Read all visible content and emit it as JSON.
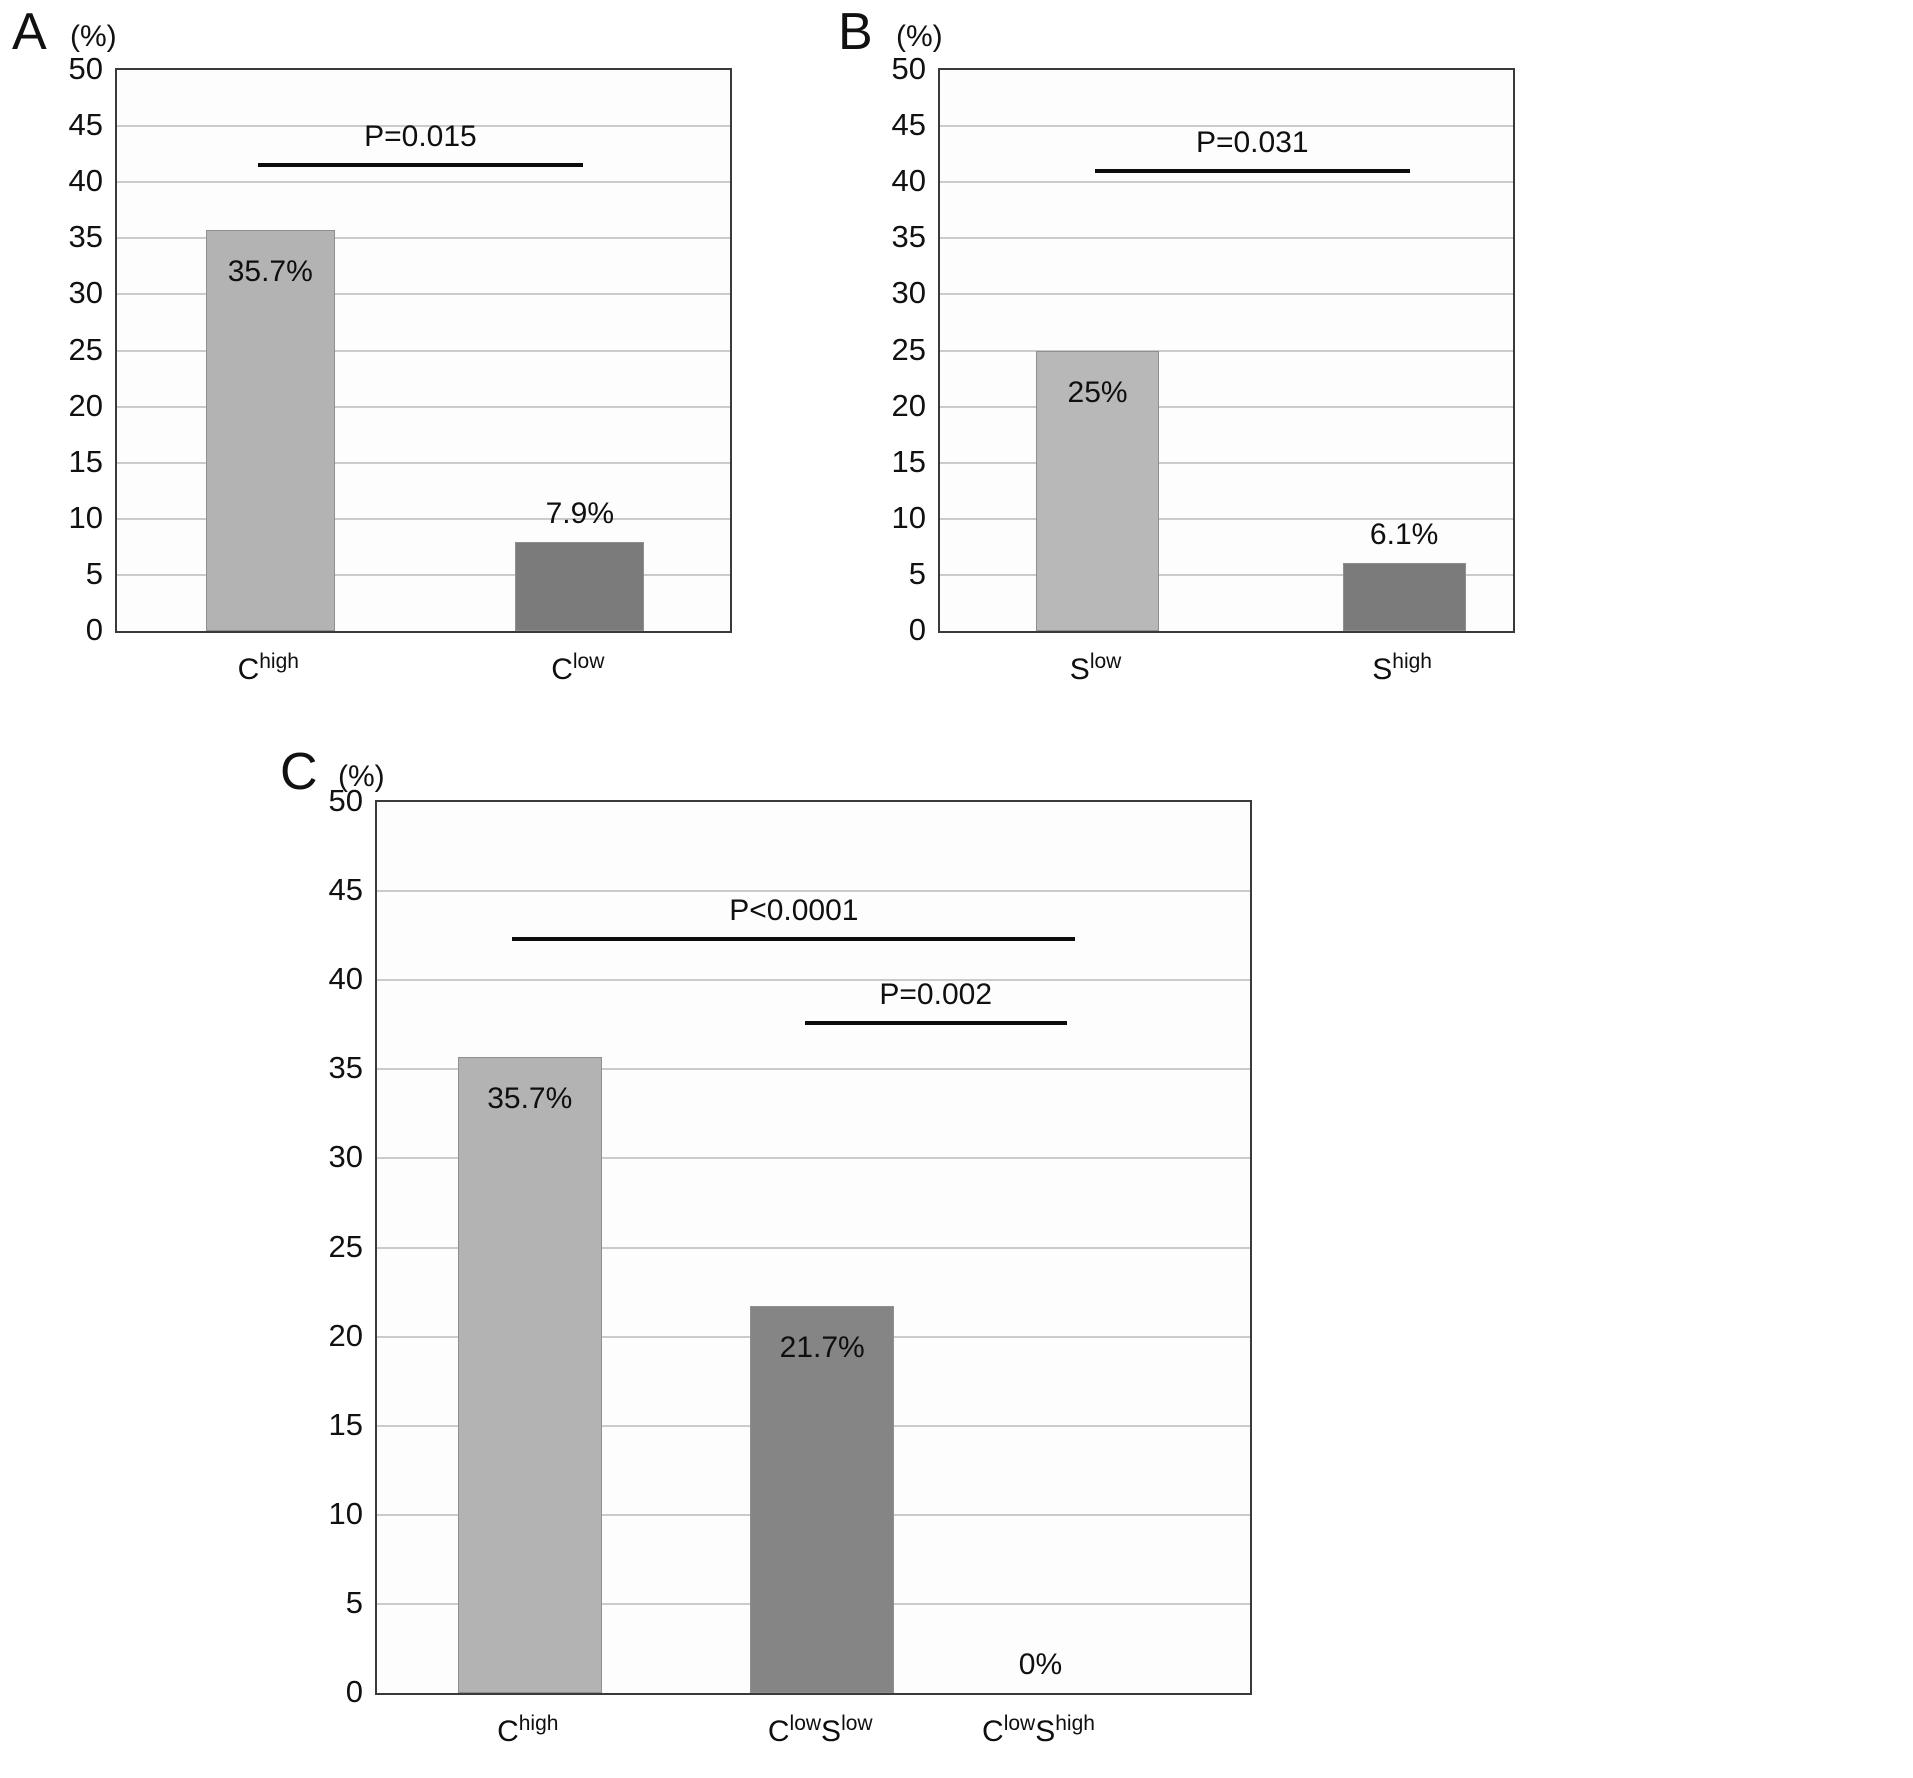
{
  "chart_data": [
    {
      "panel": "A",
      "type": "bar",
      "title": "",
      "ylabel": "(%)",
      "xlabel": "",
      "ylim": [
        0,
        50
      ],
      "yticks": [
        0,
        5,
        10,
        15,
        20,
        25,
        30,
        35,
        40,
        45,
        50
      ],
      "grid": true,
      "legend": false,
      "categories": [
        "C^high",
        "C^low"
      ],
      "bars": [
        {
          "key": "c-high",
          "category": "C^high",
          "segments": [
            {
              "text": "C",
              "sup": "high"
            }
          ],
          "value": 35.7,
          "label": "35.7%",
          "color": "#b3b3b3",
          "label_position": "inside"
        },
        {
          "key": "c-low",
          "category": "C^low",
          "segments": [
            {
              "text": "C",
              "sup": "low"
            }
          ],
          "value": 7.9,
          "label": "7.9%",
          "color": "#7b7b7b",
          "label_position": "above"
        }
      ],
      "significance": [
        {
          "label": "P=0.015",
          "y": 41.5,
          "x1": 0.23,
          "x2": 0.76
        }
      ],
      "layout": {
        "centers": [
          0.25,
          0.755
        ],
        "bar_width_frac": 0.21
      }
    },
    {
      "panel": "B",
      "type": "bar",
      "title": "",
      "ylabel": "(%)",
      "xlabel": "",
      "ylim": [
        0,
        50
      ],
      "yticks": [
        0,
        5,
        10,
        15,
        20,
        25,
        30,
        35,
        40,
        45,
        50
      ],
      "grid": true,
      "legend": false,
      "categories": [
        "S^low",
        "S^high"
      ],
      "bars": [
        {
          "key": "s-low",
          "category": "S^low",
          "segments": [
            {
              "text": "S",
              "sup": "low"
            }
          ],
          "value": 25,
          "label": "25%",
          "color": "#b8b8b8",
          "label_position": "inside"
        },
        {
          "key": "s-high",
          "category": "S^high",
          "segments": [
            {
              "text": "S",
              "sup": "high"
            }
          ],
          "value": 6.1,
          "label": "6.1%",
          "color": "#7b7b7b",
          "label_position": "above"
        }
      ],
      "significance": [
        {
          "label": "P=0.031",
          "y": 41,
          "x1": 0.27,
          "x2": 0.82
        }
      ],
      "layout": {
        "centers": [
          0.275,
          0.81
        ],
        "bar_width_frac": 0.215
      }
    },
    {
      "panel": "C",
      "type": "bar",
      "title": "",
      "ylabel": "(%)",
      "xlabel": "",
      "ylim": [
        0,
        50
      ],
      "yticks": [
        0,
        5,
        10,
        15,
        20,
        25,
        30,
        35,
        40,
        45,
        50
      ],
      "grid": true,
      "legend": false,
      "categories": [
        "C^high",
        "C^lowS^low",
        "C^lowS^high"
      ],
      "bars": [
        {
          "key": "c-high",
          "category": "C^high",
          "segments": [
            {
              "text": "C",
              "sup": "high"
            }
          ],
          "value": 35.7,
          "label": "35.7%",
          "color": "#b3b3b3",
          "label_position": "inside"
        },
        {
          "key": "c-low-s-low",
          "category": "C^lowS^low",
          "segments": [
            {
              "text": "C",
              "sup": "low"
            },
            {
              "text": "S",
              "sup": "low"
            }
          ],
          "value": 21.7,
          "label": "21.7%",
          "color": "#858585",
          "label_position": "inside"
        },
        {
          "key": "c-low-s-high",
          "category": "C^lowS^high",
          "segments": [
            {
              "text": "C",
              "sup": "low"
            },
            {
              "text": "S",
              "sup": "high"
            }
          ],
          "value": 0,
          "label": "0%",
          "color": "#858585",
          "label_position": "above"
        }
      ],
      "significance": [
        {
          "label": "P<0.0001",
          "y": 42.3,
          "x1": 0.155,
          "x2": 0.8
        },
        {
          "label": "P=0.002",
          "y": 37.6,
          "x1": 0.49,
          "x2": 0.79
        }
      ],
      "layout": {
        "centers": [
          0.175,
          0.51,
          0.76
        ],
        "bar_width_frac": 0.165
      }
    }
  ]
}
